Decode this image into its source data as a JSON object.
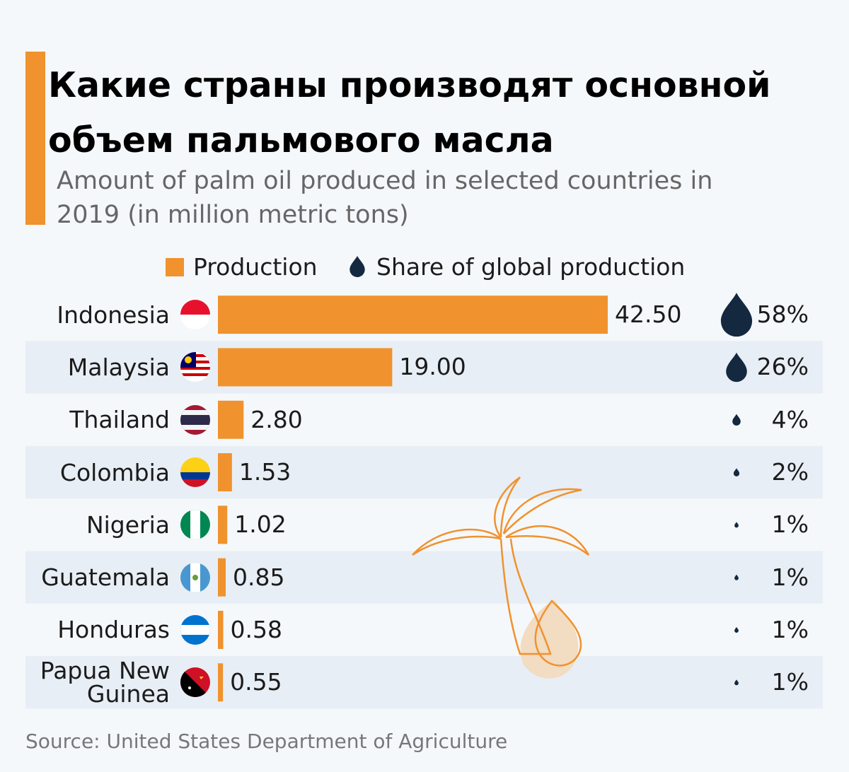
{
  "chart_data": {
    "type": "bar",
    "orientation": "horizontal",
    "title": "Какие страны производят основной объем пальмового масла",
    "subtitle": "Amount of palm oil produced in selected countries in 2019 (in million metric tons)",
    "categories": [
      "Indonesia",
      "Malaysia",
      "Thailand",
      "Colombia",
      "Nigeria",
      "Guatemala",
      "Honduras",
      "Papua New Guinea"
    ],
    "series": [
      {
        "name": "Production",
        "color": "#f0922e",
        "values": [
          42.5,
          19,
          2.8,
          1.53,
          1.02,
          0.85,
          0.58,
          0.55
        ],
        "value_labels": [
          "42.50",
          "19.00",
          "2.80",
          "1.53",
          "1.02",
          "0.85",
          "0.58",
          "0.55"
        ]
      },
      {
        "name": "Share of global production",
        "color": "#14283f",
        "values": [
          58,
          26,
          4,
          2,
          1,
          1,
          1,
          1
        ],
        "value_labels": [
          "58%",
          "26%",
          "4%",
          "2%",
          "1%",
          "1%",
          "1%",
          "1%"
        ]
      }
    ],
    "source": "Source: United States Department of Agriculture"
  }
}
